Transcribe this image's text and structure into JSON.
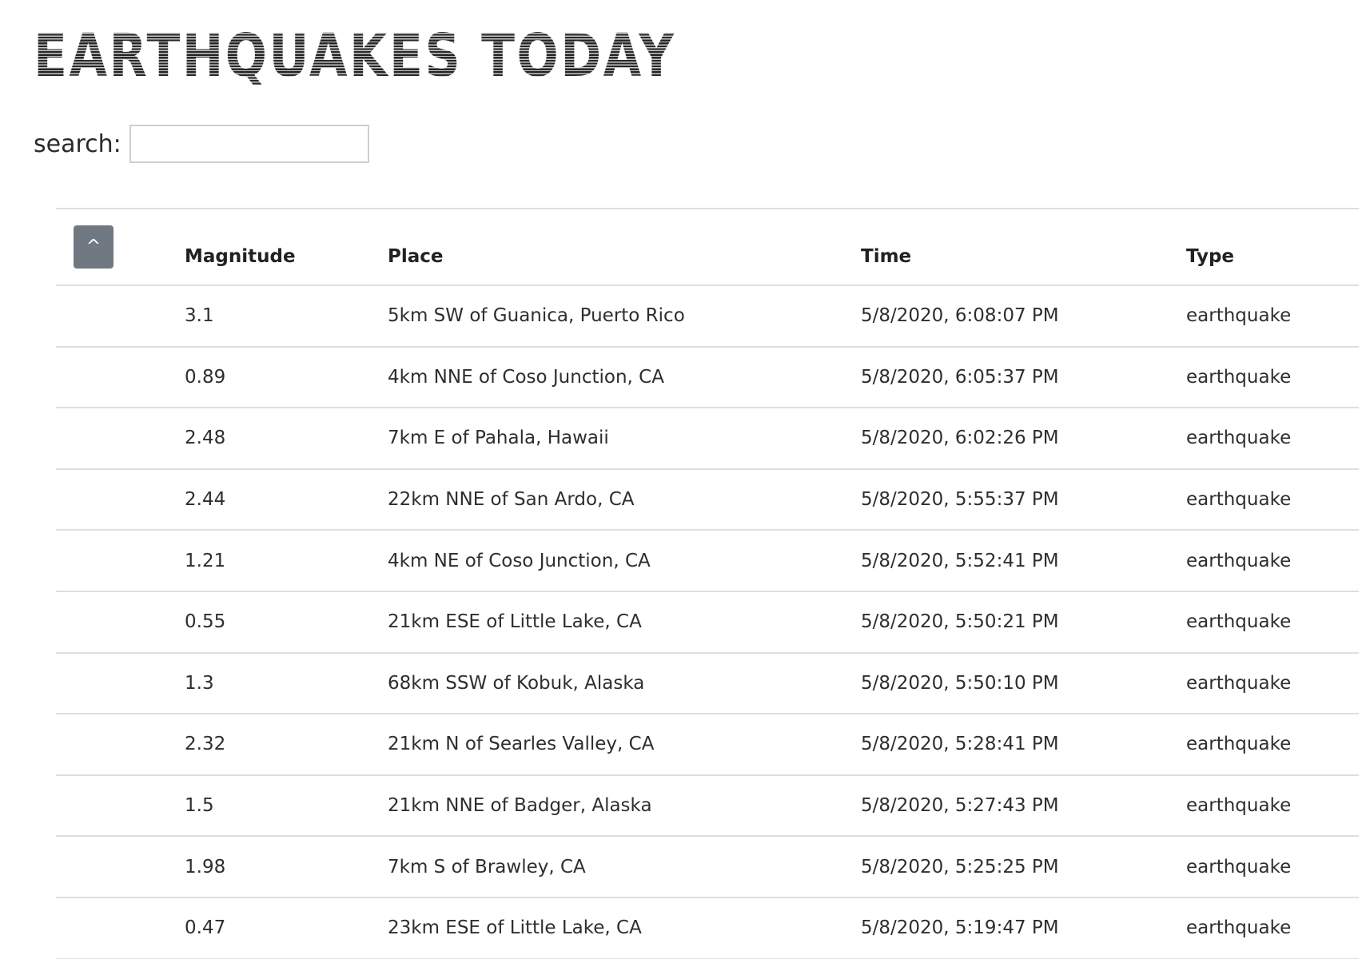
{
  "page": {
    "title": "EARTHQUAKES TODAY"
  },
  "search": {
    "label": "search:",
    "value": "",
    "placeholder": ""
  },
  "table": {
    "sort_button_label": "^",
    "columns": [
      "Magnitude",
      "Place",
      "Time",
      "Type"
    ],
    "rows": [
      {
        "magnitude": "3.1",
        "place": "5km SW of Guanica, Puerto Rico",
        "time": "5/8/2020, 6:08:07 PM",
        "type": "earthquake"
      },
      {
        "magnitude": "0.89",
        "place": "4km NNE of Coso Junction, CA",
        "time": "5/8/2020, 6:05:37 PM",
        "type": "earthquake"
      },
      {
        "magnitude": "2.48",
        "place": "7km E of Pahala, Hawaii",
        "time": "5/8/2020, 6:02:26 PM",
        "type": "earthquake"
      },
      {
        "magnitude": "2.44",
        "place": "22km NNE of San Ardo, CA",
        "time": "5/8/2020, 5:55:37 PM",
        "type": "earthquake"
      },
      {
        "magnitude": "1.21",
        "place": "4km NE of Coso Junction, CA",
        "time": "5/8/2020, 5:52:41 PM",
        "type": "earthquake"
      },
      {
        "magnitude": "0.55",
        "place": "21km ESE of Little Lake, CA",
        "time": "5/8/2020, 5:50:21 PM",
        "type": "earthquake"
      },
      {
        "magnitude": "1.3",
        "place": "68km SSW of Kobuk, Alaska",
        "time": "5/8/2020, 5:50:10 PM",
        "type": "earthquake"
      },
      {
        "magnitude": "2.32",
        "place": "21km N of Searles Valley, CA",
        "time": "5/8/2020, 5:28:41 PM",
        "type": "earthquake"
      },
      {
        "magnitude": "1.5",
        "place": "21km NNE of Badger, Alaska",
        "time": "5/8/2020, 5:27:43 PM",
        "type": "earthquake"
      },
      {
        "magnitude": "1.98",
        "place": "7km S of Brawley, CA",
        "time": "5/8/2020, 5:25:25 PM",
        "type": "earthquake"
      },
      {
        "magnitude": "0.47",
        "place": "23km ESE of Little Lake, CA",
        "time": "5/8/2020, 5:19:47 PM",
        "type": "earthquake"
      }
    ]
  },
  "colors": {
    "sort_button_bg": "#707882",
    "row_divider": "#dedede",
    "text": "#2a2a2a"
  }
}
